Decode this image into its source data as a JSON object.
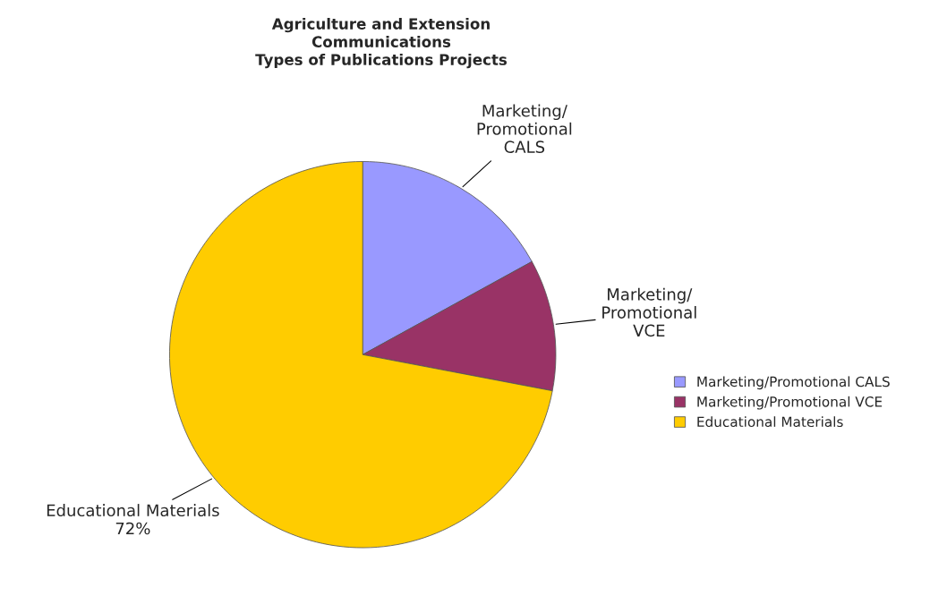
{
  "chart_data": {
    "type": "pie",
    "title": "Agriculture and Extension\nCommunications\nTypes of Publications Projects",
    "categories": [
      "Marketing/Promotional CALS",
      "Marketing/Promotional VCE",
      "Educational Materials"
    ],
    "values": [
      17,
      11,
      72
    ],
    "colors": [
      "#9999ff",
      "#993366",
      "#ffcc00"
    ],
    "value_labels": [
      null,
      null,
      "72%"
    ],
    "legend": "right"
  }
}
